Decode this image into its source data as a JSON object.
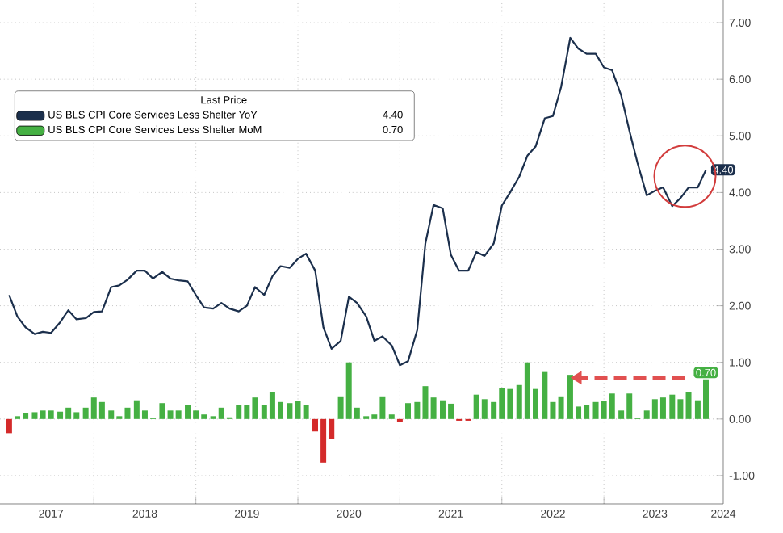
{
  "chart_data": {
    "type": "line",
    "legend_title": "Last Price",
    "legend": "top left",
    "grid": true,
    "x": [
      "2017-03",
      "2017-04",
      "2017-05",
      "2017-06",
      "2017-07",
      "2017-08",
      "2017-09",
      "2017-10",
      "2017-11",
      "2017-12",
      "2018-01",
      "2018-02",
      "2018-03",
      "2018-04",
      "2018-05",
      "2018-06",
      "2018-07",
      "2018-08",
      "2018-09",
      "2018-10",
      "2018-11",
      "2018-12",
      "2019-01",
      "2019-02",
      "2019-03",
      "2019-04",
      "2019-05",
      "2019-06",
      "2019-07",
      "2019-08",
      "2019-09",
      "2019-10",
      "2019-11",
      "2019-12",
      "2020-01",
      "2020-02",
      "2020-03",
      "2020-04",
      "2020-05",
      "2020-06",
      "2020-07",
      "2020-08",
      "2020-09",
      "2020-10",
      "2020-11",
      "2020-12",
      "2021-01",
      "2021-02",
      "2021-03",
      "2021-04",
      "2021-05",
      "2021-06",
      "2021-07",
      "2021-08",
      "2021-09",
      "2021-10",
      "2021-11",
      "2021-12",
      "2022-01",
      "2022-02",
      "2022-03",
      "2022-04",
      "2022-05",
      "2022-06",
      "2022-07",
      "2022-08",
      "2022-09",
      "2022-10",
      "2022-11",
      "2022-12",
      "2023-01",
      "2023-02",
      "2023-03",
      "2023-04",
      "2023-05",
      "2023-06",
      "2023-07",
      "2023-08",
      "2023-09",
      "2023-10",
      "2023-11",
      "2023-12",
      "2024-01"
    ],
    "series": [
      {
        "name": "US BLS CPI Core Services Less Shelter YoY",
        "color": "#1b2f4c",
        "values": [
          2.19,
          1.81,
          1.62,
          1.5,
          1.54,
          1.52,
          1.71,
          1.92,
          1.76,
          1.78,
          1.89,
          1.9,
          2.33,
          2.36,
          2.46,
          2.62,
          2.62,
          2.48,
          2.6,
          2.48,
          2.45,
          2.43,
          2.19,
          1.97,
          1.95,
          2.05,
          1.95,
          1.9,
          2.0,
          2.33,
          2.19,
          2.52,
          2.7,
          2.67,
          2.83,
          2.92,
          2.62,
          1.62,
          1.24,
          1.38,
          2.16,
          2.05,
          1.81,
          1.38,
          1.46,
          1.3,
          0.95,
          1.02,
          1.57,
          3.1,
          3.78,
          3.72,
          2.9,
          2.62,
          2.62,
          2.95,
          2.88,
          3.1,
          3.77,
          4.0,
          4.28,
          4.65,
          4.81,
          5.31,
          5.35,
          5.86,
          6.73,
          6.54,
          6.45,
          6.45,
          6.21,
          6.16,
          5.71,
          5.09,
          4.52,
          3.95,
          4.03,
          4.09,
          3.76,
          3.9,
          4.09,
          4.09,
          4.4
        ],
        "value_labels": [
          null,
          null,
          null,
          null,
          null,
          null,
          null,
          null,
          null,
          null,
          null,
          null,
          null,
          null,
          null,
          null,
          null,
          null,
          null,
          null,
          null,
          null,
          null,
          null,
          null,
          null,
          null,
          null,
          null,
          null,
          null,
          null,
          null,
          null,
          null,
          null,
          null,
          null,
          null,
          null,
          null,
          null,
          null,
          null,
          null,
          null,
          null,
          null,
          null,
          null,
          null,
          null,
          null,
          null,
          null,
          null,
          null,
          null,
          null,
          null,
          null,
          null,
          null,
          null,
          null,
          null,
          null,
          null,
          null,
          null,
          null,
          null,
          null,
          null,
          null,
          null,
          null,
          null,
          null,
          null,
          null,
          null,
          "4.40"
        ]
      },
      {
        "name": "US BLS CPI Core Services Less Shelter MoM",
        "type": "bar",
        "color": "#45b043",
        "values": [
          -0.25,
          0.05,
          0.1,
          0.12,
          0.15,
          0.15,
          0.13,
          0.2,
          0.12,
          0.2,
          0.38,
          0.3,
          0.15,
          0.05,
          0.2,
          0.33,
          0.15,
          0.02,
          0.28,
          0.15,
          0.15,
          0.25,
          0.15,
          0.08,
          0.05,
          0.2,
          0.03,
          0.25,
          0.25,
          0.38,
          0.25,
          0.47,
          0.3,
          0.28,
          0.32,
          0.25,
          -0.22,
          -0.77,
          -0.35,
          0.4,
          1.0,
          0.2,
          0.05,
          0.08,
          0.4,
          0.08,
          -0.05,
          0.28,
          0.3,
          0.58,
          0.38,
          0.33,
          0.27,
          -0.03,
          -0.03,
          0.43,
          0.35,
          0.3,
          0.55,
          0.53,
          0.6,
          1.0,
          0.53,
          0.83,
          0.3,
          0.4,
          0.78,
          0.22,
          0.25,
          0.3,
          0.32,
          0.45,
          0.15,
          0.45,
          0.02,
          0.15,
          0.35,
          0.38,
          0.43,
          0.35,
          0.47,
          0.33,
          0.7
        ],
        "colors": [
          "#d42a2a",
          "#45b043",
          "#45b043",
          "#45b043",
          "#45b043",
          "#45b043",
          "#45b043",
          "#45b043",
          "#45b043",
          "#45b043",
          "#45b043",
          "#45b043",
          "#45b043",
          "#45b043",
          "#45b043",
          "#45b043",
          "#45b043",
          "#45b043",
          "#45b043",
          "#45b043",
          "#45b043",
          "#45b043",
          "#45b043",
          "#45b043",
          "#45b043",
          "#45b043",
          "#45b043",
          "#45b043",
          "#45b043",
          "#45b043",
          "#45b043",
          "#45b043",
          "#45b043",
          "#45b043",
          "#45b043",
          "#45b043",
          "#d42a2a",
          "#d42a2a",
          "#d42a2a",
          "#45b043",
          "#45b043",
          "#45b043",
          "#45b043",
          "#45b043",
          "#45b043",
          "#45b043",
          "#d42a2a",
          "#45b043",
          "#45b043",
          "#45b043",
          "#45b043",
          "#45b043",
          "#45b043",
          "#d42a2a",
          "#d42a2a",
          "#45b043",
          "#45b043",
          "#45b043",
          "#45b043",
          "#45b043",
          "#45b043",
          "#45b043",
          "#45b043",
          "#45b043",
          "#45b043",
          "#45b043",
          "#45b043",
          "#45b043",
          "#45b043",
          "#45b043",
          "#45b043",
          "#45b043",
          "#45b043",
          "#45b043",
          "#45b043",
          "#45b043",
          "#45b043",
          "#45b043",
          "#45b043",
          "#45b043",
          "#45b043",
          "#45b043",
          "#45b043"
        ],
        "value_labels": [
          null,
          null,
          null,
          null,
          null,
          null,
          null,
          null,
          null,
          null,
          null,
          null,
          null,
          null,
          null,
          null,
          null,
          null,
          null,
          null,
          null,
          null,
          null,
          null,
          null,
          null,
          null,
          null,
          null,
          null,
          null,
          null,
          null,
          null,
          null,
          null,
          null,
          null,
          null,
          null,
          null,
          null,
          null,
          null,
          null,
          null,
          null,
          null,
          null,
          null,
          null,
          null,
          null,
          null,
          null,
          null,
          null,
          null,
          null,
          null,
          null,
          null,
          null,
          null,
          null,
          null,
          null,
          null,
          null,
          null,
          null,
          null,
          null,
          null,
          null,
          null,
          null,
          null,
          null,
          null,
          null,
          null,
          "0.70"
        ]
      }
    ],
    "xlim": [
      "2017-02",
      "2024-03"
    ],
    "xticks": [
      {
        "value": "2018-01",
        "label": null
      },
      {
        "value": "2019-01",
        "label": null
      },
      {
        "value": "2020-01",
        "label": null
      },
      {
        "value": "2021-01",
        "label": null
      },
      {
        "value": "2022-01",
        "label": null
      },
      {
        "value": "2023-01",
        "label": null
      },
      {
        "value": "2024-01",
        "label": null
      },
      {
        "value": "2017-08",
        "label": "2017"
      },
      {
        "value": "2018-07",
        "label": "2018"
      },
      {
        "value": "2019-07",
        "label": "2019"
      },
      {
        "value": "2020-07",
        "label": "2020"
      },
      {
        "value": "2021-07",
        "label": "2021"
      },
      {
        "value": "2022-07",
        "label": "2022"
      },
      {
        "value": "2023-07",
        "label": "2023"
      },
      {
        "value": "2024-03",
        "label": "2024"
      }
    ],
    "ylim": [
      -1.5,
      7.4
    ],
    "yticks": [
      {
        "value": -1,
        "label": "-1.00"
      },
      {
        "value": 0,
        "label": "0.00"
      },
      {
        "value": 1,
        "label": "1.00"
      },
      {
        "value": 2,
        "label": "2.00"
      },
      {
        "value": 3,
        "label": "3.00"
      },
      {
        "value": 4,
        "label": "4.00"
      },
      {
        "value": 5,
        "label": "5.00"
      },
      {
        "value": 6,
        "label": "6.00"
      },
      {
        "value": 7,
        "label": "7.00"
      }
    ]
  }
}
